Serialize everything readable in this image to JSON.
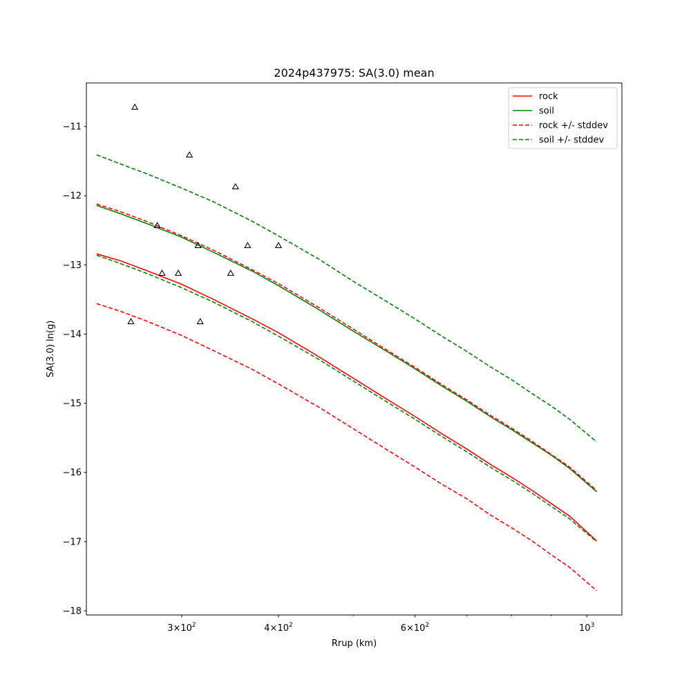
{
  "chart_data": {
    "type": "line",
    "title": "2024p437975: SA(3.0) mean",
    "xlabel": "Rrup (km)",
    "ylabel": "SA(3.0) ln(g)",
    "xscale": "log",
    "xlim": [
      226,
      1110
    ],
    "ylim": [
      -18.06,
      -10.37
    ],
    "grid": false,
    "legend_position": "top-right",
    "x_ticks": [
      {
        "value": 300,
        "mantissa": "3",
        "base": "10",
        "exp": "2"
      },
      {
        "value": 400,
        "mantissa": "4",
        "base": "10",
        "exp": "2"
      },
      {
        "value": 600,
        "mantissa": "6",
        "base": "10",
        "exp": "2"
      },
      {
        "value": 1000,
        "mantissa": "",
        "base": "10",
        "exp": "3"
      }
    ],
    "x_minor_ticks": [
      500,
      700,
      800,
      900
    ],
    "y_ticks": [
      {
        "value": -11,
        "label": "−11"
      },
      {
        "value": -12,
        "label": "−12"
      },
      {
        "value": -13,
        "label": "−13"
      },
      {
        "value": -14,
        "label": "−14"
      },
      {
        "value": -15,
        "label": "−15"
      },
      {
        "value": -16,
        "label": "−16"
      },
      {
        "value": -17,
        "label": "−17"
      },
      {
        "value": -18,
        "label": "−18"
      }
    ],
    "x": [
      233,
      250,
      270,
      300,
      330,
      370,
      400,
      450,
      500,
      550,
      600,
      650,
      700,
      750,
      800,
      850,
      900,
      950,
      1030
    ],
    "series": [
      {
        "name": "rock",
        "color": "#ff0000",
        "style": "solid",
        "values": [
          -12.84,
          -12.94,
          -13.08,
          -13.28,
          -13.5,
          -13.78,
          -13.98,
          -14.32,
          -14.64,
          -14.93,
          -15.19,
          -15.44,
          -15.66,
          -15.88,
          -16.07,
          -16.26,
          -16.45,
          -16.63,
          -16.99
        ]
      },
      {
        "name": "soil",
        "color": "#008000",
        "style": "solid",
        "values": [
          -12.14,
          -12.26,
          -12.4,
          -12.6,
          -12.82,
          -13.09,
          -13.3,
          -13.64,
          -13.96,
          -14.24,
          -14.5,
          -14.75,
          -14.97,
          -15.19,
          -15.38,
          -15.57,
          -15.75,
          -15.94,
          -16.28
        ]
      },
      {
        "name": "rock +/- stddev",
        "color": "#ff0000",
        "style": "dashed",
        "bands": [
          [
            -12.12,
            -12.23,
            -12.37,
            -12.58,
            -12.79,
            -13.07,
            -13.27,
            -13.61,
            -13.93,
            -14.22,
            -14.48,
            -14.73,
            -14.95,
            -15.17,
            -15.36,
            -15.55,
            -15.74,
            -15.92,
            -16.26
          ],
          [
            -13.56,
            -13.67,
            -13.81,
            -14.02,
            -14.24,
            -14.51,
            -14.72,
            -15.05,
            -15.37,
            -15.66,
            -15.92,
            -16.17,
            -16.38,
            -16.61,
            -16.8,
            -16.99,
            -17.19,
            -17.37,
            -17.71
          ]
        ]
      },
      {
        "name": "soil +/- stddev",
        "color": "#008000",
        "style": "dashed",
        "bands": [
          [
            -11.41,
            -11.54,
            -11.68,
            -11.89,
            -12.09,
            -12.37,
            -12.58,
            -12.91,
            -13.24,
            -13.52,
            -13.78,
            -14.03,
            -14.25,
            -14.47,
            -14.66,
            -14.86,
            -15.04,
            -15.23,
            -15.56
          ],
          [
            -12.86,
            -12.98,
            -13.12,
            -13.33,
            -13.54,
            -13.82,
            -14.03,
            -14.36,
            -14.68,
            -14.97,
            -15.23,
            -15.48,
            -15.7,
            -15.92,
            -16.11,
            -16.3,
            -16.49,
            -16.67,
            -17.0
          ]
        ]
      }
    ],
    "observations": {
      "marker": "triangle",
      "color": "#000000",
      "points": [
        {
          "x": 261,
          "y": -10.72
        },
        {
          "x": 258,
          "y": -13.82
        },
        {
          "x": 279,
          "y": -12.43
        },
        {
          "x": 283,
          "y": -13.12
        },
        {
          "x": 297,
          "y": -13.12
        },
        {
          "x": 307,
          "y": -11.41
        },
        {
          "x": 315,
          "y": -12.72
        },
        {
          "x": 317,
          "y": -13.82
        },
        {
          "x": 347,
          "y": -13.12
        },
        {
          "x": 352,
          "y": -11.87
        },
        {
          "x": 365,
          "y": -12.72
        },
        {
          "x": 400,
          "y": -12.72
        }
      ]
    }
  }
}
